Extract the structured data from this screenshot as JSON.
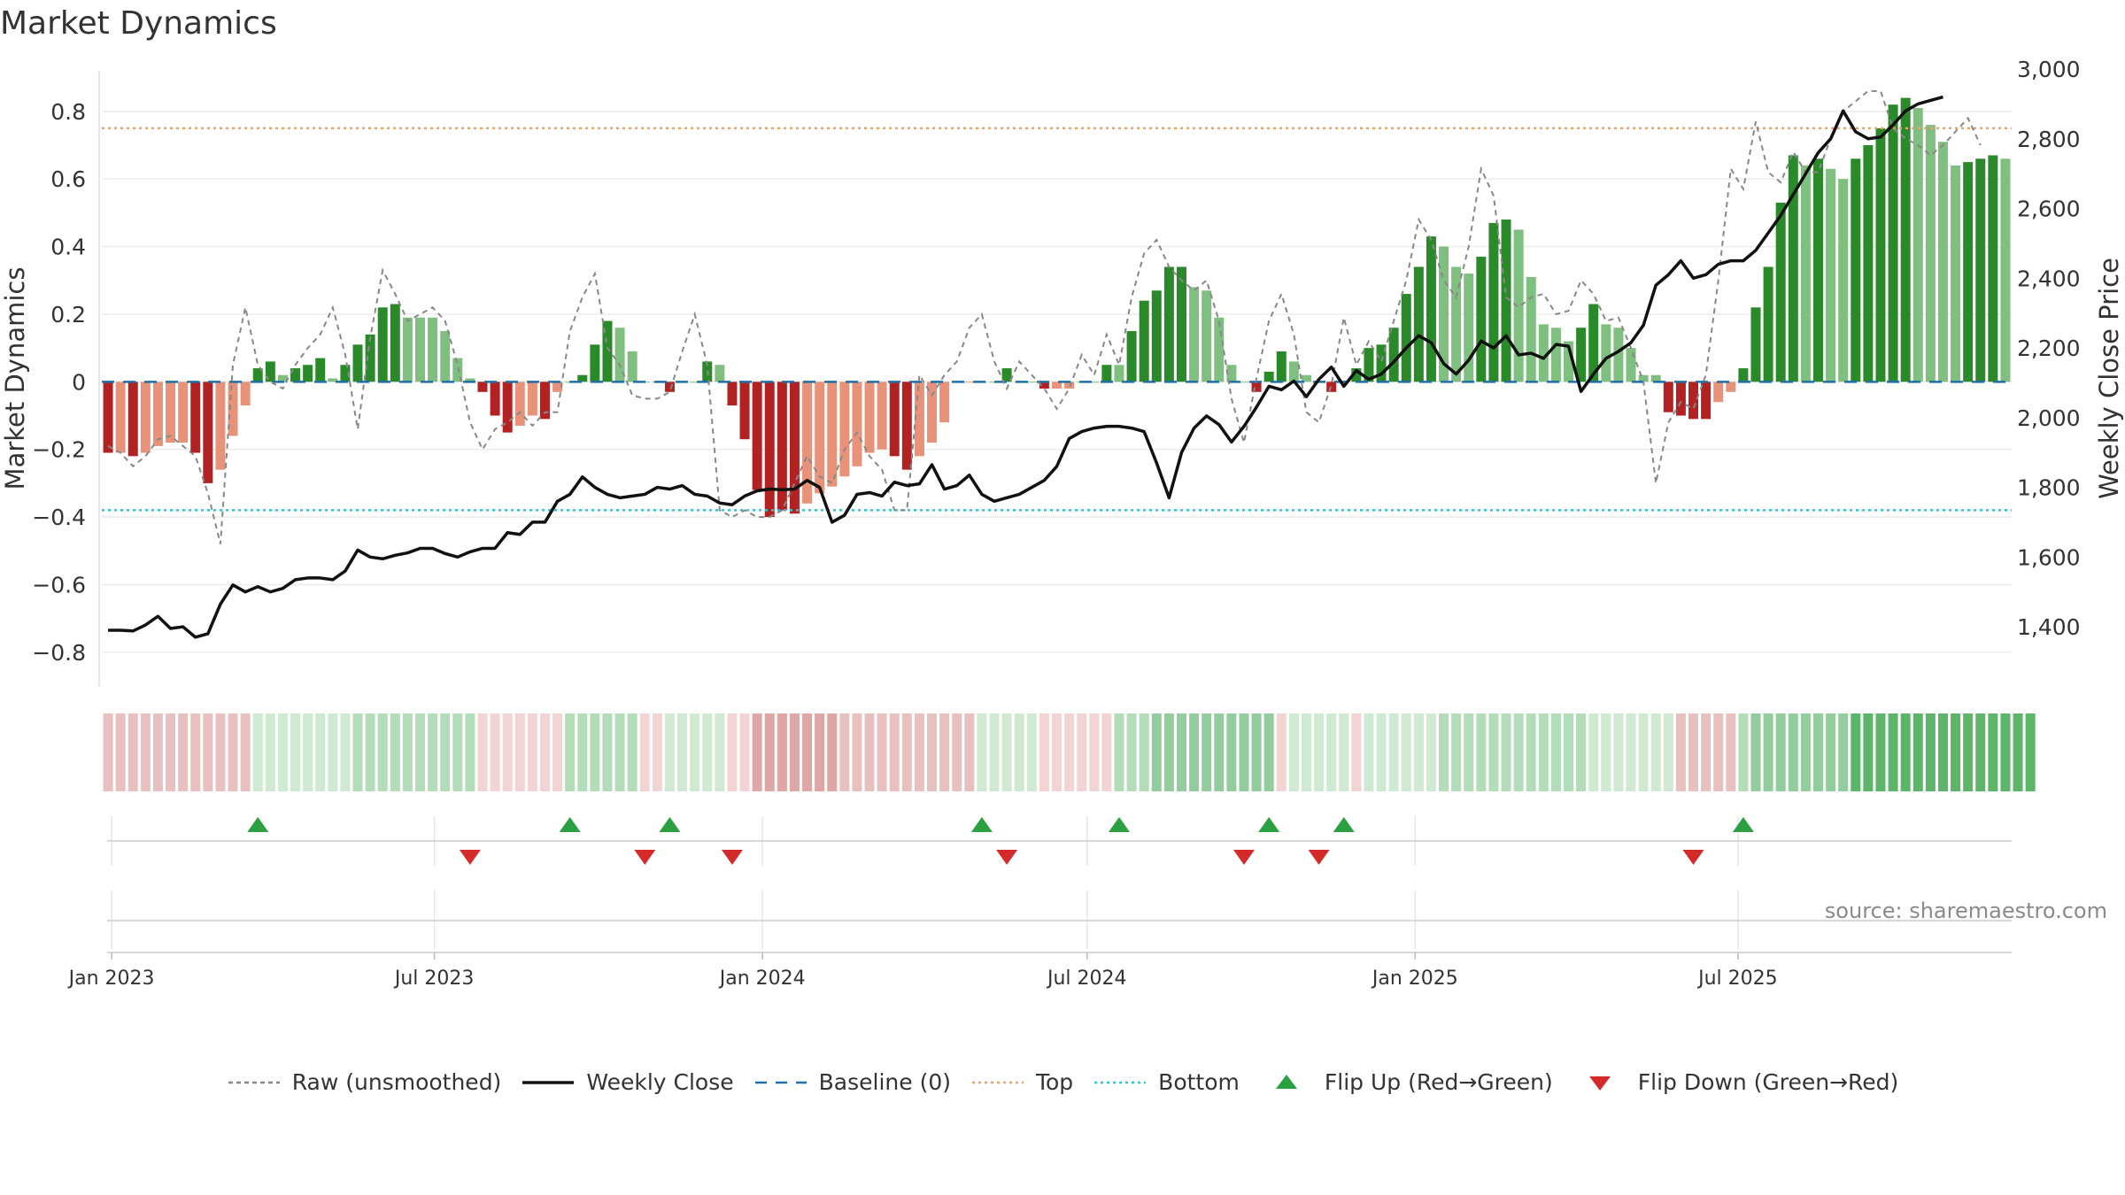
{
  "title": "Market Dynamics",
  "source": "source: sharemaestro.com",
  "legend": [
    {
      "key": "raw",
      "label": "Raw (unsmoothed)",
      "color": "#888888",
      "style": "dashed-line"
    },
    {
      "key": "close",
      "label": "Weekly Close",
      "color": "#111111",
      "style": "solid-line"
    },
    {
      "key": "baseline",
      "label": "Baseline (0)",
      "color": "#1f6fa8",
      "style": "long-dash-line"
    },
    {
      "key": "top",
      "label": "Top",
      "color": "#e8a36a",
      "style": "dotted-line"
    },
    {
      "key": "bottom",
      "label": "Bottom",
      "color": "#2bc6d6",
      "style": "dotted-line"
    },
    {
      "key": "flip_up",
      "label": "Flip Up (Red→Green)",
      "color": "#2aa040",
      "style": "triangle-up"
    },
    {
      "key": "flip_down",
      "label": "Flip Down (Green→Red)",
      "color": "#d42a2a",
      "style": "triangle-down"
    }
  ],
  "chart_data": {
    "type": "bar",
    "title": "Market Dynamics",
    "ylabel": "Market Dynamics",
    "y2label": "Weekly Close Price",
    "ylim": [
      -0.9,
      0.92
    ],
    "y2lim": [
      1230,
      2995
    ],
    "yticks": [
      -0.8,
      -0.6,
      -0.4,
      -0.2,
      0,
      0.2,
      0.4,
      0.6,
      0.8
    ],
    "ytick_labels": [
      "−0.8",
      "−0.6",
      "−0.4",
      "−0.2",
      "0",
      "0.2",
      "0.4",
      "0.6",
      "0.8"
    ],
    "y2ticks": [
      1400,
      1600,
      1800,
      2000,
      2200,
      2400,
      2600,
      2800,
      3000
    ],
    "y2tick_labels": [
      "1,400",
      "1,600",
      "1,800",
      "2,000",
      "2,200",
      "2,400",
      "2,600",
      "2,800",
      "3,000"
    ],
    "xticks": [
      "2023-01-01",
      "2023-07-01",
      "2024-01-01",
      "2024-07-01",
      "2025-01-01",
      "2025-07-01"
    ],
    "xtick_labels": [
      "Jan 2023",
      "Jul 2023",
      "Jan 2024",
      "Jul 2024",
      "Jan 2025",
      "Jul 2025"
    ],
    "first_week": "2022-12-30",
    "week_step_days": 7,
    "thresholds": {
      "top": 0.75,
      "bottom": -0.38,
      "baseline": 0
    },
    "grid": true,
    "colors": {
      "strong_green": "#2a8a2a",
      "light_green": "#7fbf7f",
      "strong_red": "#b22222",
      "light_red": "#e8927a"
    },
    "bar_values": [
      -0.21,
      -0.21,
      -0.22,
      -0.21,
      -0.19,
      -0.18,
      -0.18,
      -0.21,
      -0.3,
      -0.26,
      -0.16,
      -0.07,
      0.04,
      0.06,
      0.02,
      0.04,
      0.05,
      0.07,
      0.01,
      0.05,
      0.11,
      0.14,
      0.22,
      0.23,
      0.19,
      0.19,
      0.19,
      0.15,
      0.07,
      0.01,
      -0.03,
      -0.1,
      -0.15,
      -0.13,
      -0.1,
      -0.11,
      -0.03,
      0.0,
      0.02,
      0.11,
      0.18,
      0.16,
      0.09,
      0.0,
      0.0,
      -0.03,
      0.0,
      0.0,
      0.06,
      0.05,
      -0.07,
      -0.17,
      -0.32,
      -0.4,
      -0.38,
      -0.39,
      -0.36,
      -0.33,
      -0.31,
      -0.28,
      -0.25,
      -0.21,
      -0.2,
      -0.22,
      -0.26,
      -0.22,
      -0.18,
      -0.12,
      0.0,
      0.0,
      0.0,
      0.0,
      0.04,
      0.0,
      0.0,
      -0.02,
      -0.02,
      -0.02,
      0.0,
      0.0,
      0.05,
      0.05,
      0.15,
      0.24,
      0.27,
      0.34,
      0.34,
      0.28,
      0.27,
      0.19,
      0.05,
      0.0,
      -0.03,
      0.03,
      0.09,
      0.06,
      0.02,
      0.0,
      -0.03,
      0.0,
      0.04,
      0.1,
      0.11,
      0.16,
      0.26,
      0.34,
      0.43,
      0.4,
      0.34,
      0.32,
      0.37,
      0.47,
      0.48,
      0.45,
      0.31,
      0.17,
      0.16,
      0.12,
      0.16,
      0.23,
      0.17,
      0.16,
      0.1,
      0.02,
      0.02,
      -0.09,
      -0.1,
      -0.11,
      -0.11,
      -0.06,
      -0.03,
      0.04,
      0.22,
      0.34,
      0.53,
      0.67,
      0.64,
      0.66,
      0.63,
      0.6,
      0.66,
      0.7,
      0.75,
      0.82,
      0.84,
      0.81,
      0.76,
      0.71,
      0.64,
      0.65,
      0.66,
      0.67,
      0.66
    ],
    "bar_shade": [
      "sr",
      "lr",
      "sr",
      "lr",
      "lr",
      "lr",
      "lr",
      "sr",
      "sr",
      "lr",
      "lr",
      "lr",
      "sg",
      "sg",
      "lg",
      "sg",
      "sg",
      "sg",
      "lg",
      "sg",
      "sg",
      "sg",
      "sg",
      "sg",
      "lg",
      "lg",
      "lg",
      "lg",
      "lg",
      "lg",
      "sr",
      "sr",
      "sr",
      "lr",
      "lr",
      "sr",
      "lr",
      "lg",
      "sg",
      "sg",
      "sg",
      "lg",
      "lg",
      "lg",
      "lg",
      "sr",
      "lg",
      "lg",
      "sg",
      "lg",
      "sr",
      "sr",
      "sr",
      "sr",
      "sr",
      "sr",
      "lr",
      "lr",
      "lr",
      "lr",
      "lr",
      "lr",
      "lr",
      "sr",
      "sr",
      "lr",
      "lr",
      "lr",
      "lr",
      "lr",
      "lg",
      "lg",
      "sg",
      "lg",
      "lg",
      "sr",
      "lr",
      "lr",
      "lg",
      "lg",
      "sg",
      "lg",
      "sg",
      "sg",
      "sg",
      "sg",
      "sg",
      "lg",
      "lg",
      "lg",
      "lg",
      "lg",
      "sr",
      "sg",
      "sg",
      "lg",
      "lg",
      "lg",
      "sr",
      "lg",
      "sg",
      "sg",
      "sg",
      "sg",
      "sg",
      "sg",
      "sg",
      "lg",
      "lg",
      "lg",
      "sg",
      "sg",
      "sg",
      "lg",
      "lg",
      "lg",
      "lg",
      "lg",
      "sg",
      "sg",
      "lg",
      "lg",
      "lg",
      "lg",
      "lg",
      "sr",
      "sr",
      "sr",
      "sr",
      "lr",
      "lr",
      "sg",
      "sg",
      "sg",
      "sg",
      "sg",
      "lg",
      "sg",
      "lg",
      "lg",
      "sg",
      "sg",
      "sg",
      "sg",
      "sg",
      "lg",
      "lg",
      "lg",
      "lg",
      "sg",
      "sg",
      "sg",
      "lg"
    ],
    "series": [
      {
        "name": "Raw (unsmoothed)",
        "axis": "left",
        "values": [
          -0.19,
          -0.21,
          -0.25,
          -0.22,
          -0.17,
          -0.16,
          -0.19,
          -0.22,
          -0.33,
          -0.48,
          0.05,
          0.22,
          0.05,
          0.0,
          -0.02,
          0.05,
          0.1,
          0.14,
          0.22,
          0.08,
          -0.14,
          0.13,
          0.33,
          0.26,
          0.18,
          0.2,
          0.22,
          0.18,
          0.05,
          -0.12,
          -0.2,
          -0.14,
          -0.12,
          -0.09,
          -0.13,
          -0.09,
          -0.09,
          0.15,
          0.25,
          0.32,
          0.1,
          0.05,
          -0.04,
          -0.05,
          -0.05,
          -0.03,
          0.09,
          0.2,
          0.05,
          -0.38,
          -0.4,
          -0.38,
          -0.4,
          -0.4,
          -0.38,
          -0.3,
          -0.22,
          -0.28,
          -0.3,
          -0.2,
          -0.15,
          -0.22,
          -0.26,
          -0.38,
          -0.38,
          0.02,
          -0.04,
          0.02,
          0.06,
          0.16,
          0.2,
          0.06,
          -0.02,
          0.06,
          0.02,
          -0.02,
          -0.08,
          -0.02,
          0.08,
          0.02,
          0.14,
          0.05,
          0.25,
          0.38,
          0.42,
          0.34,
          0.3,
          0.27,
          0.3,
          0.18,
          -0.05,
          -0.18,
          0.01,
          0.18,
          0.26,
          0.14,
          -0.09,
          -0.12,
          -0.01,
          0.19,
          0.05,
          0.12,
          0.06,
          0.18,
          0.3,
          0.48,
          0.42,
          0.3,
          0.25,
          0.4,
          0.63,
          0.55,
          0.25,
          0.22,
          0.25,
          0.26,
          0.2,
          0.21,
          0.3,
          0.26,
          0.18,
          0.19,
          0.1,
          0.0,
          -0.3,
          -0.12,
          -0.06,
          -0.08,
          0.02,
          0.3,
          0.63,
          0.57,
          0.77,
          0.62,
          0.59,
          0.68,
          0.62,
          0.62,
          0.72,
          0.8,
          0.83,
          0.86,
          0.86,
          0.75,
          0.72,
          0.7,
          0.67,
          0.7,
          0.74,
          0.78,
          0.7
        ]
      },
      {
        "name": "Weekly Close",
        "axis": "right",
        "values": [
          1390,
          1390,
          1388,
          1405,
          1430,
          1395,
          1400,
          1370,
          1380,
          1465,
          1520,
          1500,
          1515,
          1500,
          1510,
          1535,
          1540,
          1540,
          1535,
          1560,
          1620,
          1600,
          1595,
          1605,
          1612,
          1625,
          1625,
          1610,
          1600,
          1615,
          1625,
          1625,
          1670,
          1665,
          1700,
          1700,
          1760,
          1780,
          1830,
          1800,
          1780,
          1770,
          1775,
          1780,
          1800,
          1795,
          1805,
          1780,
          1775,
          1755,
          1750,
          1775,
          1790,
          1795,
          1793,
          1795,
          1820,
          1800,
          1700,
          1720,
          1780,
          1785,
          1775,
          1815,
          1805,
          1810,
          1865,
          1795,
          1805,
          1835,
          1780,
          1760,
          1770,
          1780,
          1800,
          1820,
          1860,
          1940,
          1960,
          1970,
          1975,
          1975,
          1970,
          1960,
          1870,
          1770,
          1900,
          1970,
          2005,
          1980,
          1930,
          1975,
          2030,
          2090,
          2080,
          2105,
          2060,
          2110,
          2145,
          2090,
          2135,
          2110,
          2125,
          2160,
          2200,
          2235,
          2215,
          2155,
          2125,
          2165,
          2220,
          2200,
          2235,
          2180,
          2185,
          2170,
          2210,
          2205,
          2075,
          2125,
          2170,
          2190,
          2215,
          2265,
          2380,
          2410,
          2450,
          2400,
          2410,
          2440,
          2450,
          2450,
          2480,
          2530,
          2580,
          2640,
          2700,
          2760,
          2800,
          2880,
          2820,
          2800,
          2805,
          2840,
          2880,
          2900,
          2910,
          2920
        ]
      }
    ],
    "regime_strip": [
      "r2",
      "r2",
      "r2",
      "r2",
      "r2",
      "r2",
      "r2",
      "r2",
      "r2",
      "r2",
      "r2",
      "r2",
      "g1",
      "g1",
      "g1",
      "g1",
      "g1",
      "g1",
      "g1",
      "g1",
      "g2",
      "g2",
      "g2",
      "g2",
      "g2",
      "g2",
      "g2",
      "g2",
      "g2",
      "g2",
      "r1",
      "r1",
      "r1",
      "r1",
      "r1",
      "r1",
      "r1",
      "g2",
      "g2",
      "g2",
      "g2",
      "g2",
      "g2",
      "r1",
      "r1",
      "g1",
      "g1",
      "g1",
      "g1",
      "g1",
      "r1",
      "r1",
      "r3",
      "r3",
      "r3",
      "r3",
      "r3",
      "r3",
      "r3",
      "r2",
      "r2",
      "r2",
      "r2",
      "r2",
      "r2",
      "r2",
      "r2",
      "r2",
      "r2",
      "r2",
      "g1",
      "g1",
      "g1",
      "g1",
      "g1",
      "r1",
      "r1",
      "r1",
      "r1",
      "r1",
      "r1",
      "g2",
      "g2",
      "g2",
      "g3",
      "g3",
      "g3",
      "g3",
      "g3",
      "g3",
      "g3",
      "g3",
      "g3",
      "g3",
      "r1",
      "g1",
      "g1",
      "g1",
      "g1",
      "g1",
      "r1",
      "g1",
      "g1",
      "g1",
      "g1",
      "g1",
      "g1",
      "g2",
      "g2",
      "g2",
      "g2",
      "g2",
      "g2",
      "g2",
      "g2",
      "g2",
      "g2",
      "g2",
      "g2",
      "g1",
      "g1",
      "g1",
      "g1",
      "g1",
      "g1",
      "g1",
      "r2",
      "r2",
      "r2",
      "r2",
      "r2",
      "g2",
      "g3",
      "g3",
      "g3",
      "g3",
      "g3",
      "g3",
      "g3",
      "g3",
      "g4",
      "g4",
      "g4",
      "g4",
      "g4",
      "g4",
      "g4",
      "g4",
      "g4",
      "g4",
      "g4",
      "g4",
      "g4",
      "g4",
      "g4"
    ],
    "regime_colors": {
      "r1": "#f2d4d4",
      "r2": "#e9c0c0",
      "r3": "#dea6a6",
      "g1": "#cfe9d3",
      "g2": "#b3dcb9",
      "g3": "#94cd9d",
      "g4": "#5db56a"
    },
    "flip_up_weeks": [
      12,
      37,
      45,
      70,
      81,
      93,
      99,
      131
    ],
    "flip_down_weeks": [
      29,
      43,
      50,
      72,
      91,
      97,
      127
    ]
  }
}
